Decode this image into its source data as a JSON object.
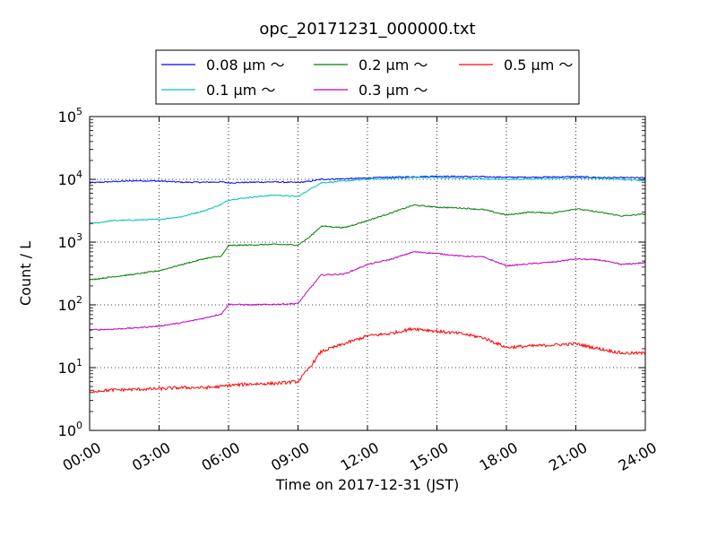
{
  "chart_data": {
    "type": "line",
    "title": "opc_20171231_000000.txt",
    "xlabel": "Time on 2017-12-31 (JST)",
    "ylabel": "Count / L",
    "xlim": [
      0,
      24
    ],
    "ylim_log10": [
      0,
      5
    ],
    "y_scale": "log",
    "grid": true,
    "legend_position": "top-center",
    "x_ticks": [
      {
        "value": 0,
        "label": "00:00"
      },
      {
        "value": 3,
        "label": "03:00"
      },
      {
        "value": 6,
        "label": "06:00"
      },
      {
        "value": 9,
        "label": "09:00"
      },
      {
        "value": 12,
        "label": "12:00"
      },
      {
        "value": 15,
        "label": "15:00"
      },
      {
        "value": 18,
        "label": "18:00"
      },
      {
        "value": 21,
        "label": "21:00"
      },
      {
        "value": 24,
        "label": "24:00"
      }
    ],
    "y_ticks": [
      {
        "value": 1,
        "base": "10",
        "exp": "0"
      },
      {
        "value": 10,
        "base": "10",
        "exp": "1"
      },
      {
        "value": 100,
        "base": "10",
        "exp": "2"
      },
      {
        "value": 1000,
        "base": "10",
        "exp": "3"
      },
      {
        "value": 10000,
        "base": "10",
        "exp": "4"
      },
      {
        "value": 100000,
        "base": "10",
        "exp": "5"
      }
    ],
    "x_hours": [
      0,
      1,
      2,
      3,
      4,
      5,
      5.7,
      6,
      7,
      8,
      9,
      9.5,
      10,
      11,
      12,
      13,
      14,
      15,
      16,
      17,
      18,
      19,
      20,
      21,
      22,
      23,
      24
    ],
    "series": [
      {
        "name": "0.08 μm ～",
        "color": "#0000ff",
        "values": [
          8800,
          9200,
          9500,
          9400,
          9000,
          9000,
          9100,
          8800,
          9000,
          9100,
          8900,
          9300,
          10000,
          10200,
          10500,
          10800,
          11000,
          11200,
          11100,
          11000,
          10800,
          10800,
          10900,
          11000,
          10700,
          10600,
          10600
        ]
      },
      {
        "name": "0.1 μm ～",
        "color": "#00bfbf",
        "values": [
          1950,
          2200,
          2250,
          2300,
          2550,
          3200,
          4000,
          4700,
          5200,
          5600,
          5300,
          6900,
          8800,
          9400,
          10000,
          10300,
          10700,
          10700,
          10500,
          10200,
          10000,
          10100,
          10300,
          10500,
          10400,
          9900,
          9600
        ]
      },
      {
        "name": "0.2 μm ～",
        "color": "#008000",
        "values": [
          250,
          280,
          310,
          350,
          440,
          550,
          600,
          880,
          900,
          920,
          900,
          1200,
          1800,
          1700,
          2200,
          2900,
          3900,
          3600,
          3500,
          3300,
          2700,
          3000,
          2900,
          3400,
          3000,
          2600,
          2800
        ]
      },
      {
        "name": "0.3 μm ～",
        "color": "#bf00bf",
        "values": [
          40,
          41,
          43,
          46,
          52,
          62,
          72,
          102,
          100,
          102,
          105,
          180,
          300,
          310,
          440,
          530,
          700,
          660,
          600,
          580,
          420,
          450,
          480,
          540,
          520,
          440,
          470
        ]
      },
      {
        "name": "0.5 μm ～",
        "color": "#ff0000",
        "values": [
          4.2,
          4.4,
          4.5,
          4.6,
          4.8,
          4.8,
          5.0,
          5.2,
          5.5,
          5.6,
          6.0,
          10,
          18,
          24,
          32,
          35,
          42,
          38,
          35,
          30,
          21,
          22,
          23,
          24,
          20,
          17,
          17
        ]
      }
    ]
  }
}
